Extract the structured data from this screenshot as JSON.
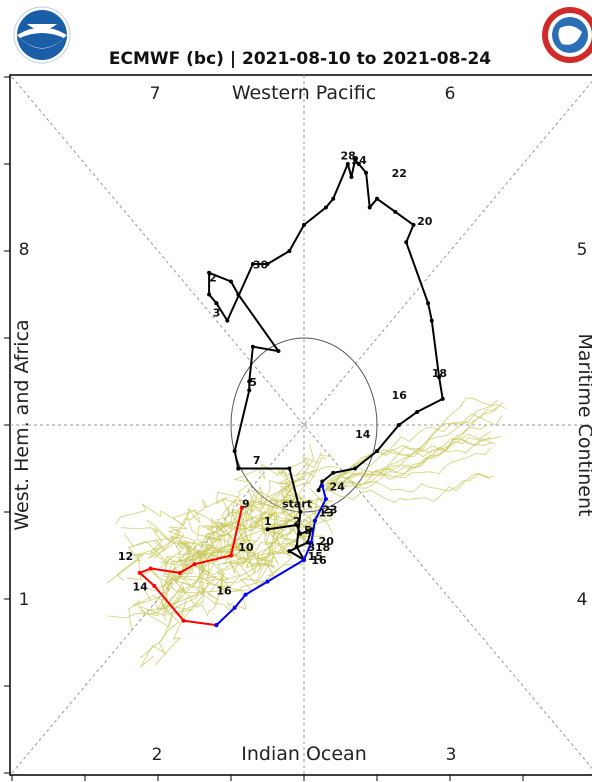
{
  "chart_data": {
    "type": "line",
    "title": "ECMWF (bc) | 2021-08-10 to 2021-08-24",
    "xlim": [
      -4,
      4
    ],
    "ylim": [
      -4,
      4
    ],
    "grid": true,
    "region_labels": {
      "top": "Western Pacific",
      "bottom": "Indian Ocean",
      "left": "West. Hem. and Africa",
      "right": "Maritime Continent"
    },
    "phase_labels": [
      {
        "text": "7",
        "pos": "top-left"
      },
      {
        "text": "6",
        "pos": "top-right"
      },
      {
        "text": "8",
        "pos": "left-upper"
      },
      {
        "text": "5",
        "pos": "right-upper"
      },
      {
        "text": "1",
        "pos": "left-lower"
      },
      {
        "text": "4",
        "pos": "right-lower"
      },
      {
        "text": "2",
        "pos": "bottom-left"
      },
      {
        "text": "3",
        "pos": "bottom-right"
      }
    ],
    "amplitude_circle_radius": 1,
    "series": [
      {
        "color": "#000000",
        "points": [
          {
            "x": -0.5,
            "y": -1.2
          },
          {
            "x": -0.1,
            "y": -1.15
          },
          {
            "x": -0.05,
            "y": -1.25
          },
          {
            "x": 0.1,
            "y": -1.2
          },
          {
            "x": 0.05,
            "y": -1.35
          },
          {
            "x": -0.2,
            "y": -1.45
          },
          {
            "x": 0.0,
            "y": -1.55
          },
          {
            "x": -0.1,
            "y": -1.4
          },
          {
            "x": -0.05,
            "y": -1.0
          },
          {
            "x": -0.2,
            "y": -0.5
          },
          {
            "x": -0.9,
            "y": -0.5
          },
          {
            "x": -0.9,
            "y": -0.5
          },
          {
            "x": -0.95,
            "y": -0.3
          },
          {
            "x": -0.75,
            "y": 0.4
          },
          {
            "x": -0.75,
            "y": 0.5
          },
          {
            "x": -0.7,
            "y": 0.9
          },
          {
            "x": -0.35,
            "y": 0.85
          },
          {
            "x": -0.9,
            "y": 1.5
          },
          {
            "x": -1.0,
            "y": 1.65
          },
          {
            "x": -1.3,
            "y": 1.75
          },
          {
            "x": -1.3,
            "y": 1.5
          },
          {
            "x": -1.2,
            "y": 1.4
          },
          {
            "x": -1.2,
            "y": 1.4
          },
          {
            "x": -1.05,
            "y": 1.2
          },
          {
            "x": -0.7,
            "y": 1.85
          },
          {
            "x": -0.5,
            "y": 1.85
          },
          {
            "x": -0.2,
            "y": 2.0
          },
          {
            "x": 0.0,
            "y": 2.3
          },
          {
            "x": 0.3,
            "y": 2.5
          },
          {
            "x": 0.4,
            "y": 2.6
          },
          {
            "x": 0.6,
            "y": 3.0
          },
          {
            "x": 0.65,
            "y": 2.85
          },
          {
            "x": 0.7,
            "y": 3.05
          },
          {
            "x": 0.75,
            "y": 3.0
          },
          {
            "x": 0.85,
            "y": 2.9
          },
          {
            "x": 0.9,
            "y": 2.5
          },
          {
            "x": 1.0,
            "y": 2.6
          },
          {
            "x": 1.25,
            "y": 2.45
          },
          {
            "x": 1.5,
            "y": 2.3
          },
          {
            "x": 1.4,
            "y": 2.1
          },
          {
            "x": 1.7,
            "y": 1.4
          },
          {
            "x": 1.75,
            "y": 1.2
          },
          {
            "x": 1.85,
            "y": 0.55
          },
          {
            "x": 1.9,
            "y": 0.3
          },
          {
            "x": 1.55,
            "y": 0.15
          },
          {
            "x": 1.3,
            "y": 0.0
          },
          {
            "x": 1.0,
            "y": -0.3
          },
          {
            "x": 0.7,
            "y": -0.5
          },
          {
            "x": 0.4,
            "y": -0.55
          },
          {
            "x": 0.25,
            "y": -0.65
          },
          {
            "x": 0.2,
            "y": -0.75
          }
        ]
      },
      {
        "color": "#ff0000",
        "points": [
          {
            "x": -0.85,
            "y": -0.95
          },
          {
            "x": -1.0,
            "y": -1.5
          },
          {
            "x": -1.5,
            "y": -1.6
          },
          {
            "x": -1.7,
            "y": -1.7
          },
          {
            "x": -2.1,
            "y": -1.65
          },
          {
            "x": -2.25,
            "y": -1.7
          },
          {
            "x": -2.05,
            "y": -1.85
          },
          {
            "x": -1.65,
            "y": -2.25
          },
          {
            "x": -1.2,
            "y": -2.3
          }
        ]
      },
      {
        "color": "#0000ff",
        "points": [
          {
            "x": -1.2,
            "y": -2.3
          },
          {
            "x": -0.95,
            "y": -2.1
          },
          {
            "x": -0.8,
            "y": -1.95
          },
          {
            "x": -0.5,
            "y": -1.8
          },
          {
            "x": 0.0,
            "y": -1.55
          },
          {
            "x": 0.1,
            "y": -1.35
          },
          {
            "x": 0.15,
            "y": -1.1
          },
          {
            "x": 0.3,
            "y": -0.85
          },
          {
            "x": 0.25,
            "y": -0.7
          }
        ]
      }
    ],
    "point_labels": [
      {
        "text": "start",
        "x": -0.3,
        "y": -0.95
      },
      {
        "text": "1",
        "x": -0.55,
        "y": -1.15
      },
      {
        "text": "2",
        "x": -0.15,
        "y": -1.15
      },
      {
        "text": "3",
        "x": 0.05,
        "y": -1.45
      },
      {
        "text": "5",
        "x": 0.0,
        "y": -1.25
      },
      {
        "text": "13",
        "x": 0.2,
        "y": -1.05
      },
      {
        "text": "15",
        "x": 0.05,
        "y": -1.55
      },
      {
        "text": "16",
        "x": 0.1,
        "y": -1.6
      },
      {
        "text": "18",
        "x": 0.15,
        "y": -1.45
      },
      {
        "text": "20",
        "x": 0.2,
        "y": -1.38
      },
      {
        "text": "23",
        "x": 0.25,
        "y": -1.02
      },
      {
        "text": "24",
        "x": 0.35,
        "y": -0.75
      },
      {
        "text": "7",
        "x": -0.7,
        "y": -0.45
      },
      {
        "text": "9",
        "x": -0.85,
        "y": -0.95
      },
      {
        "text": "10",
        "x": -0.9,
        "y": -1.45
      },
      {
        "text": "12",
        "x": -2.55,
        "y": -1.55
      },
      {
        "text": "14",
        "x": -2.35,
        "y": -1.9
      },
      {
        "text": "16",
        "x": -1.2,
        "y": -1.95
      },
      {
        "text": "5",
        "x": -0.75,
        "y": 0.45
      },
      {
        "text": "3",
        "x": -1.25,
        "y": 1.25
      },
      {
        "text": "2",
        "x": -1.3,
        "y": 1.65
      },
      {
        "text": "30",
        "x": -0.7,
        "y": 1.8
      },
      {
        "text": "28",
        "x": 0.5,
        "y": 3.05
      },
      {
        "text": "24",
        "x": 0.65,
        "y": 3.0
      },
      {
        "text": "22",
        "x": 1.2,
        "y": 2.85
      },
      {
        "text": "20",
        "x": 1.55,
        "y": 2.3
      },
      {
        "text": "18",
        "x": 1.75,
        "y": 0.55
      },
      {
        "text": "16",
        "x": 1.2,
        "y": 0.3
      },
      {
        "text": "14",
        "x": 0.7,
        "y": -0.15
      }
    ]
  }
}
